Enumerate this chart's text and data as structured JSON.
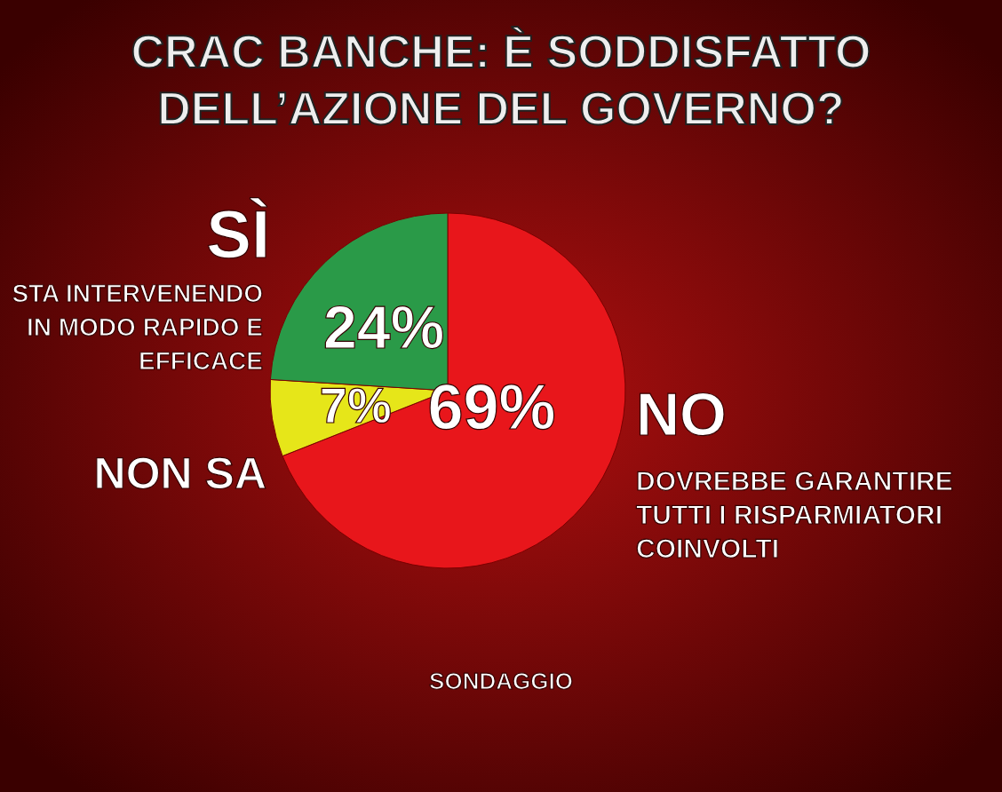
{
  "chart_data": {
    "type": "pie",
    "title": "CRAC BANCHE: È SODDISFATTO DELL’AZIONE DEL GOVERNO?",
    "categories": [
      "NO",
      "NON SA",
      "SÌ"
    ],
    "values": [
      69,
      7,
      24
    ],
    "colors": [
      "#e8161b",
      "#e6e619",
      "#2a9a48"
    ],
    "value_labels": [
      "69%",
      "7%",
      "24%"
    ],
    "annotations": [
      "DOVREBBE GARANTIRE TUTTI I RISPARMIATORI COINVOLTI",
      "STA INTERVENENDO IN MODO RAPIDO E EFFICACE",
      "SONDAGGIO"
    ]
  }
}
